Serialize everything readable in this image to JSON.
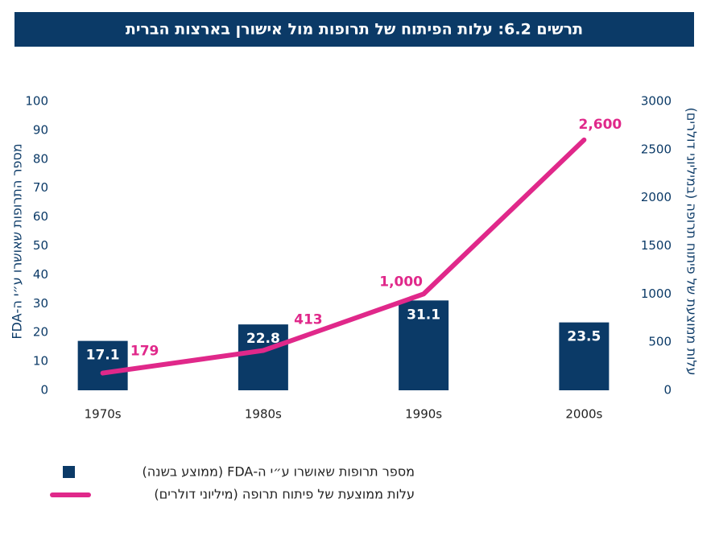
{
  "chart_data": {
    "type": "bar-line",
    "title": "תרשים 6.2: עלות הפיתוח של תרופות מול אישורן בארצות הברית",
    "ylabel": "מספר התרופות שאושרו ע״י ה-FDA",
    "y2label": "עלות ממוצעת של פיתוח תרופה (במיליוני דולרים)",
    "categories": [
      "1970s",
      "1980s",
      "1990s",
      "2000s"
    ],
    "series": [
      {
        "name": "מספר תרופות שאושרו ע״י ה-FDA (ממוצע בשנה)",
        "type": "bar",
        "color": "#0b3a67",
        "values": [
          17.1,
          22.8,
          31.1,
          23.5
        ]
      },
      {
        "name": "עלות ממוצעת של פיתוח תרופה (מיליוני דולרים)",
        "type": "line",
        "axis": "y2",
        "color": "#e0288a",
        "values": [
          179,
          413,
          1000,
          2600
        ],
        "value_labels": [
          "179",
          "413",
          "1,000",
          "2,600"
        ]
      }
    ],
    "ylim": [
      0,
      100
    ],
    "yticks": [
      0,
      10,
      20,
      30,
      40,
      50,
      60,
      70,
      80,
      90,
      100
    ],
    "y2lim": [
      0,
      3000
    ],
    "y2ticks": [
      0,
      500,
      1000,
      1500,
      2000,
      2500,
      3000
    ],
    "grid": false
  }
}
